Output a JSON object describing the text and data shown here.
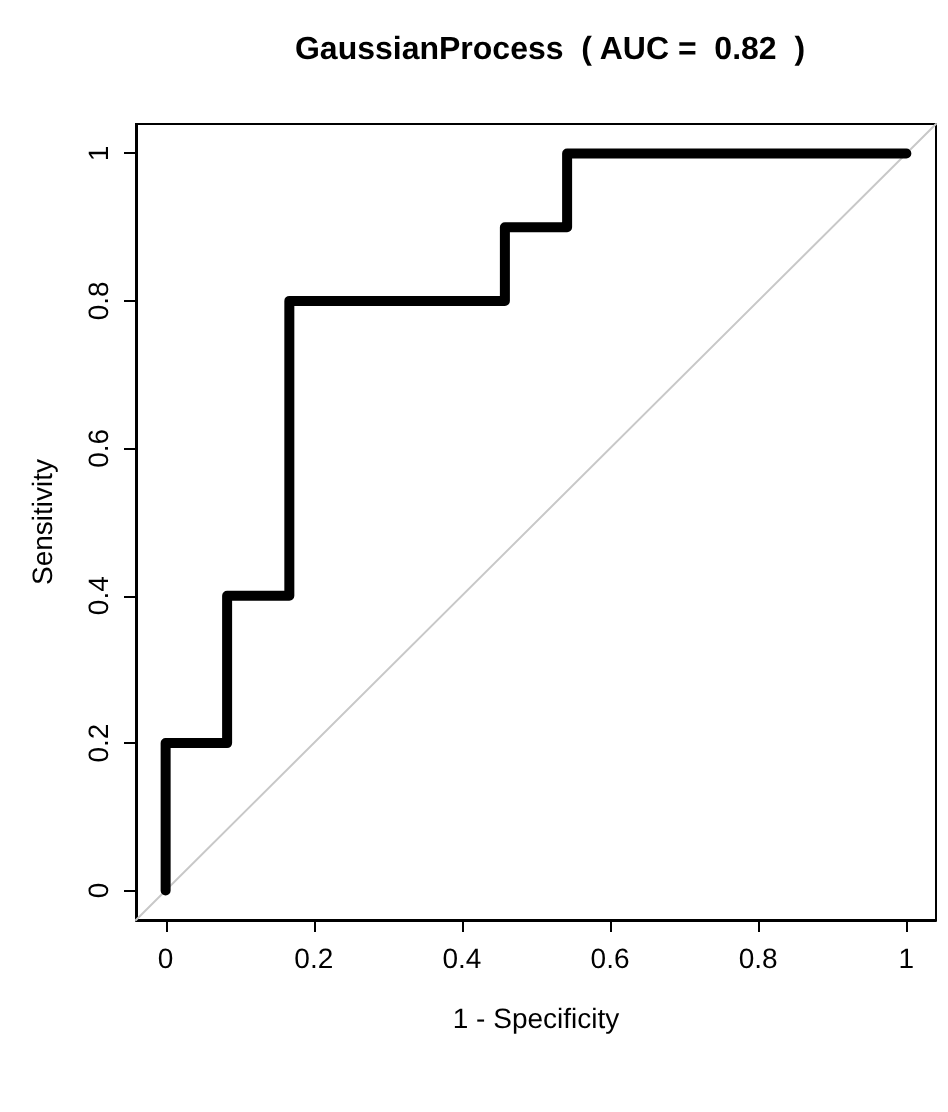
{
  "chart_data": {
    "type": "line",
    "title": "GaussianProcess  ( AUC =  0.82  )",
    "xlabel": "1 - Specificity",
    "ylabel": "Sensitivity",
    "xlim": [
      -0.04,
      1.04
    ],
    "ylim": [
      -0.04,
      1.04
    ],
    "xticks": [
      0,
      0.2,
      0.4,
      0.6,
      0.8,
      1
    ],
    "yticks": [
      0,
      0.2,
      0.4,
      0.6,
      0.8,
      1
    ],
    "grid": false,
    "marker": "none",
    "line_style": "solid",
    "series": [
      {
        "color": "#000000",
        "x": [
          0,
          0,
          0.083,
          0.083,
          0.167,
          0.167,
          0.458,
          0.458,
          0.542,
          0.542,
          1
        ],
        "values": [
          0,
          0.2,
          0.2,
          0.4,
          0.4,
          0.8,
          0.8,
          0.9,
          0.9,
          1,
          1
        ]
      },
      {
        "color": "#c8c8c8",
        "x": [
          -0.04,
          1.04
        ],
        "values": [
          -0.04,
          1.04
        ]
      }
    ]
  }
}
